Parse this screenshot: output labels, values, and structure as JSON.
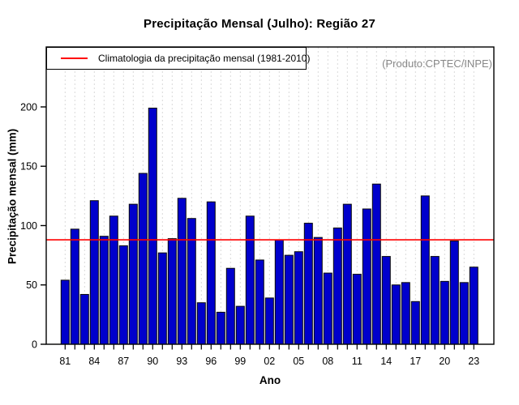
{
  "chart_data": {
    "type": "bar",
    "title": "Precipitação Mensal (Julho): Região 27",
    "xlabel": "Ano",
    "ylabel": "Precipitação mensal (mm)",
    "annotation": "(Produto:CPTEC/INPE)",
    "years": [
      1981,
      1982,
      1983,
      1984,
      1985,
      1986,
      1987,
      1988,
      1989,
      1990,
      1991,
      1992,
      1993,
      1994,
      1995,
      1996,
      1997,
      1998,
      1999,
      2000,
      2001,
      2002,
      2003,
      2004,
      2005,
      2006,
      2007,
      2008,
      2009,
      2010,
      2011,
      2012,
      2013,
      2014,
      2015,
      2016,
      2017,
      2018,
      2019,
      2020,
      2021,
      2022,
      2023
    ],
    "values": [
      54,
      97,
      42,
      121,
      91,
      108,
      83,
      118,
      144,
      199,
      77,
      89,
      123,
      106,
      35,
      120,
      27,
      64,
      32,
      108,
      71,
      39,
      88,
      75,
      78,
      102,
      90,
      60,
      98,
      118,
      59,
      114,
      135,
      74,
      50,
      52,
      36,
      125,
      74,
      53,
      87,
      52,
      65
    ],
    "x_tick_step": 3,
    "x_tick_labels": [
      "81",
      "84",
      "87",
      "90",
      "93",
      "96",
      "99",
      "02",
      "05",
      "08",
      "11",
      "14",
      "17",
      "20",
      "23"
    ],
    "yticks": [
      0,
      50,
      100,
      150,
      200
    ],
    "ylim": [
      0,
      250.5
    ],
    "legend": {
      "label": "Climatologia da precipitação mensal (1981-2010)",
      "value": 88,
      "color": "#ff0000",
      "position": "top-left"
    },
    "grid": {
      "vertical_dashed": true,
      "color": "#d9d9d9"
    },
    "colors": {
      "bar_fill": "#0000cc",
      "bar_edge": "#0a0a0a",
      "axis": "#000000",
      "annotation_text": "#888888"
    }
  }
}
